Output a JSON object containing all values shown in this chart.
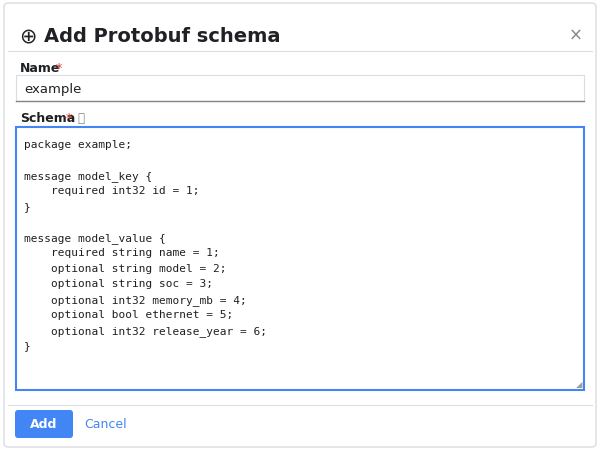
{
  "bg_color": "#ffffff",
  "outer_bg": "#f1f3f4",
  "border_color": "#dadce0",
  "title_text": "Add Protobuf schema",
  "title_icon": "⊕",
  "close_x": "×",
  "name_label": "Name",
  "name_value": "example",
  "schema_label": "Schema",
  "help_icon": "ⓘ",
  "schema_text": "package example;\n\nmessage model_key {\n    required int32 id = 1;\n}\n\nmessage model_value {\n    required string name = 1;\n    optional string model = 2;\n    optional string soc = 3;\n    optional int32 memory_mb = 4;\n    optional bool ethernet = 5;\n    optional int32 release_year = 6;\n}",
  "add_btn_text": "Add",
  "cancel_btn_text": "Cancel",
  "add_btn_color": "#4285f4",
  "cancel_btn_text_color": "#4285f4",
  "schema_border_color": "#4285f4",
  "name_border_color": "#dadce0",
  "name_underline_color": "#80868b",
  "label_color": "#202124",
  "star_color": "#d93025",
  "text_color": "#202124",
  "hint_color": "#80868b",
  "resize_color": "#9aa0a6",
  "dialog_border_color": "#dadce0",
  "schema_box_bg": "#ffffff"
}
